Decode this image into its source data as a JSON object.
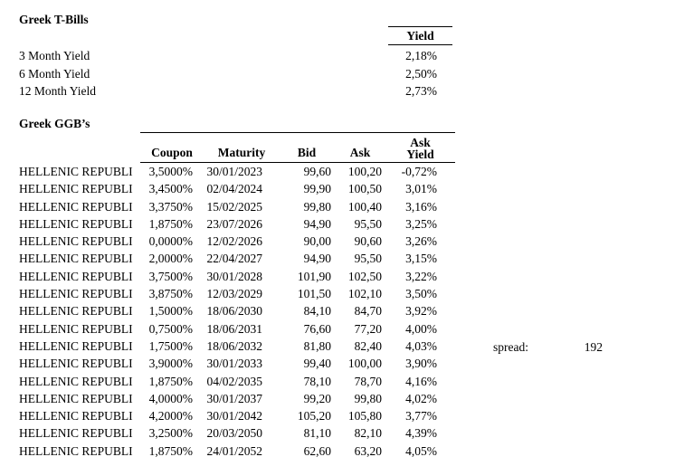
{
  "tbills": {
    "title": "Greek T-Bills",
    "yield_header": "Yield",
    "rows": [
      {
        "label": "3 Month Yield",
        "value": "2,18%"
      },
      {
        "label": "6 Month Yield",
        "value": "2,50%"
      },
      {
        "label": "12 Month Yield",
        "value": "2,73%"
      }
    ]
  },
  "ggb": {
    "title": "Greek GGB’s",
    "headers": {
      "coupon": "Coupon",
      "maturity": "Maturity",
      "bid": "Bid",
      "ask": "Ask",
      "ask_yield_line1": "Ask",
      "ask_yield_line2": "Yield"
    },
    "rows": [
      {
        "name": "HELLENIC REPUBLI",
        "coupon": "3,5000%",
        "maturity": "30/01/2023",
        "bid": "99,60",
        "ask": "100,20",
        "ask_yield": "-0,72%"
      },
      {
        "name": "HELLENIC REPUBLI",
        "coupon": "3,4500%",
        "maturity": "02/04/2024",
        "bid": "99,90",
        "ask": "100,50",
        "ask_yield": "3,01%"
      },
      {
        "name": "HELLENIC REPUBLI",
        "coupon": "3,3750%",
        "maturity": "15/02/2025",
        "bid": "99,80",
        "ask": "100,40",
        "ask_yield": "3,16%"
      },
      {
        "name": "HELLENIC REPUBLI",
        "coupon": "1,8750%",
        "maturity": "23/07/2026",
        "bid": "94,90",
        "ask": "95,50",
        "ask_yield": "3,25%"
      },
      {
        "name": "HELLENIC REPUBLI",
        "coupon": "0,0000%",
        "maturity": "12/02/2026",
        "bid": "90,00",
        "ask": "90,60",
        "ask_yield": "3,26%"
      },
      {
        "name": "HELLENIC REPUBLI",
        "coupon": "2,0000%",
        "maturity": "22/04/2027",
        "bid": "94,90",
        "ask": "95,50",
        "ask_yield": "3,15%"
      },
      {
        "name": "HELLENIC REPUBLI",
        "coupon": "3,7500%",
        "maturity": "30/01/2028",
        "bid": "101,90",
        "ask": "102,50",
        "ask_yield": "3,22%"
      },
      {
        "name": "HELLENIC REPUBLI",
        "coupon": "3,8750%",
        "maturity": "12/03/2029",
        "bid": "101,50",
        "ask": "102,10",
        "ask_yield": "3,50%"
      },
      {
        "name": "HELLENIC REPUBLI",
        "coupon": "1,5000%",
        "maturity": "18/06/2030",
        "bid": "84,10",
        "ask": "84,70",
        "ask_yield": "3,92%"
      },
      {
        "name": "HELLENIC REPUBLI",
        "coupon": "0,7500%",
        "maturity": "18/06/2031",
        "bid": "76,60",
        "ask": "77,20",
        "ask_yield": "4,00%"
      },
      {
        "name": "HELLENIC REPUBLI",
        "coupon": "1,7500%",
        "maturity": "18/06/2032",
        "bid": "81,80",
        "ask": "82,40",
        "ask_yield": "4,03%"
      },
      {
        "name": "HELLENIC REPUBLI",
        "coupon": "3,9000%",
        "maturity": "30/01/2033",
        "bid": "99,40",
        "ask": "100,00",
        "ask_yield": "3,90%"
      },
      {
        "name": "HELLENIC REPUBLI",
        "coupon": "1,8750%",
        "maturity": "04/02/2035",
        "bid": "78,10",
        "ask": "78,70",
        "ask_yield": "4,16%"
      },
      {
        "name": "HELLENIC REPUBLI",
        "coupon": "4,0000%",
        "maturity": "30/01/2037",
        "bid": "99,20",
        "ask": "99,80",
        "ask_yield": "4,02%"
      },
      {
        "name": "HELLENIC REPUBLI",
        "coupon": "4,2000%",
        "maturity": "30/01/2042",
        "bid": "105,20",
        "ask": "105,80",
        "ask_yield": "3,77%"
      },
      {
        "name": "HELLENIC REPUBLI",
        "coupon": "3,2500%",
        "maturity": "20/03/2050",
        "bid": "81,10",
        "ask": "82,10",
        "ask_yield": "4,39%"
      },
      {
        "name": "HELLENIC REPUBLI",
        "coupon": "1,8750%",
        "maturity": "24/01/2052",
        "bid": "62,60",
        "ask": "63,20",
        "ask_yield": "4,05%"
      }
    ]
  },
  "spread": {
    "label": "spread:",
    "value": "192"
  }
}
